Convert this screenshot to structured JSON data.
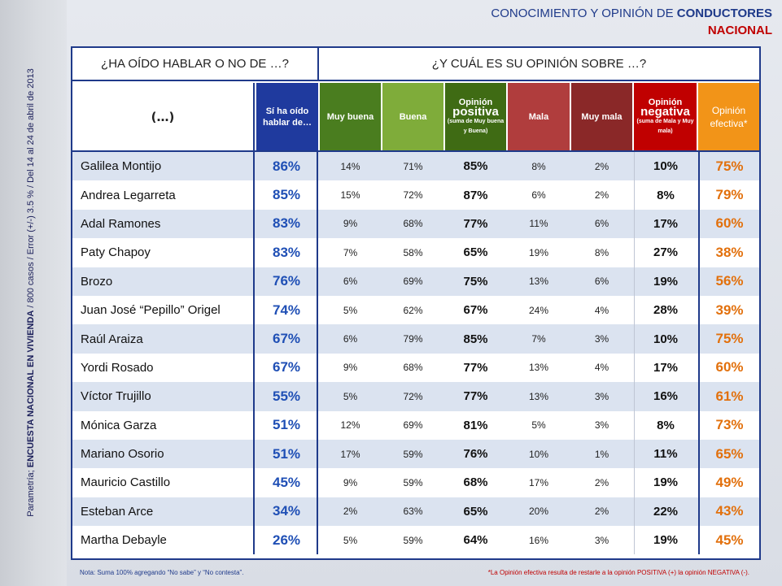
{
  "header": {
    "title_regular": "CONOCIMIENTO Y OPINIÓN DE ",
    "title_bold": "CONDUCTORES",
    "subtitle": "NACIONAL"
  },
  "sidebar": {
    "prefix": "Parametría; ",
    "bold": "ENCUESTA NACIONAL EN VIVIENDA",
    "rest": " / 800 casos / Error (+/-) 3.5 % / Del 14 al 24  de abril de 2013"
  },
  "group_headers": {
    "left": "¿HA OÍDO HABLAR O NO DE …?",
    "right": "¿Y CUÁL ES SU OPINIÓN SOBRE …?"
  },
  "columns": {
    "label": "(…)",
    "heard": "Sí ha oído hablar de…",
    "muy_buena": "Muy buena",
    "buena": "Buena",
    "positiva_top": "Opinión",
    "positiva_main": "positiva",
    "positiva_note": "(suma de Muy buena y Buena)",
    "mala": "Mala",
    "muy_mala": "Muy mala",
    "negativa_top": "Opinión",
    "negativa_main": "negativa",
    "negativa_note": "(suma de Mala y Muy mala)",
    "efectiva": "Opinión efectiva*"
  },
  "notes": {
    "left": "Nota: Suma 100% agregando “No sabe” y “No contesta”.",
    "right": "*La Opinión efectiva resulta de restarle a la opinión POSITIVA (+) la opinión NEGATIVA (-)."
  },
  "colors": {
    "heard": "#1f3a9e",
    "muy_buena": "#4a7d1f",
    "buena": "#7fac3a",
    "positiva": "#3f6b14",
    "mala": "#b03d3d",
    "muy_mala": "#8a2828",
    "negativa": "#c00000",
    "efectiva": "#f29418"
  },
  "chart_data": {
    "type": "table",
    "title": "CONOCIMIENTO Y OPINIÓN DE CONDUCTORES",
    "subtitle": "NACIONAL",
    "columns": [
      "(…)",
      "Sí ha oído hablar de…",
      "Muy buena",
      "Buena",
      "Opinión positiva",
      "Mala",
      "Muy mala",
      "Opinión negativa",
      "Opinión efectiva*"
    ],
    "rows": [
      [
        "Galilea Montijo",
        "86%",
        "14%",
        "71%",
        "85%",
        "8%",
        "2%",
        "10%",
        "75%"
      ],
      [
        "Andrea Legarreta",
        "85%",
        "15%",
        "72%",
        "87%",
        "6%",
        "2%",
        "8%",
        "79%"
      ],
      [
        "Adal Ramones",
        "83%",
        "9%",
        "68%",
        "77%",
        "11%",
        "6%",
        "17%",
        "60%"
      ],
      [
        "Paty Chapoy",
        "83%",
        "7%",
        "58%",
        "65%",
        "19%",
        "8%",
        "27%",
        "38%"
      ],
      [
        "Brozo",
        "76%",
        "6%",
        "69%",
        "75%",
        "13%",
        "6%",
        "19%",
        "56%"
      ],
      [
        "Juan José  “Pepillo” Origel",
        "74%",
        "5%",
        "62%",
        "67%",
        "24%",
        "4%",
        "28%",
        "39%"
      ],
      [
        "Raúl Araiza",
        "67%",
        "6%",
        "79%",
        "85%",
        "7%",
        "3%",
        "10%",
        "75%"
      ],
      [
        "Yordi Rosado",
        "67%",
        "9%",
        "68%",
        "77%",
        "13%",
        "4%",
        "17%",
        "60%"
      ],
      [
        "Víctor Trujillo",
        "55%",
        "5%",
        "72%",
        "77%",
        "13%",
        "3%",
        "16%",
        "61%"
      ],
      [
        "Mónica Garza",
        "51%",
        "12%",
        "69%",
        "81%",
        "5%",
        "3%",
        "8%",
        "73%"
      ],
      [
        "Mariano Osorio",
        "51%",
        "17%",
        "59%",
        "76%",
        "10%",
        "1%",
        "11%",
        "65%"
      ],
      [
        "Mauricio Castillo",
        "45%",
        "9%",
        "59%",
        "68%",
        "17%",
        "2%",
        "19%",
        "49%"
      ],
      [
        "Esteban Arce",
        "34%",
        "2%",
        "63%",
        "65%",
        "20%",
        "2%",
        "22%",
        "43%"
      ],
      [
        "Martha Debayle",
        "26%",
        "5%",
        "59%",
        "64%",
        "16%",
        "3%",
        "19%",
        "45%"
      ]
    ]
  }
}
